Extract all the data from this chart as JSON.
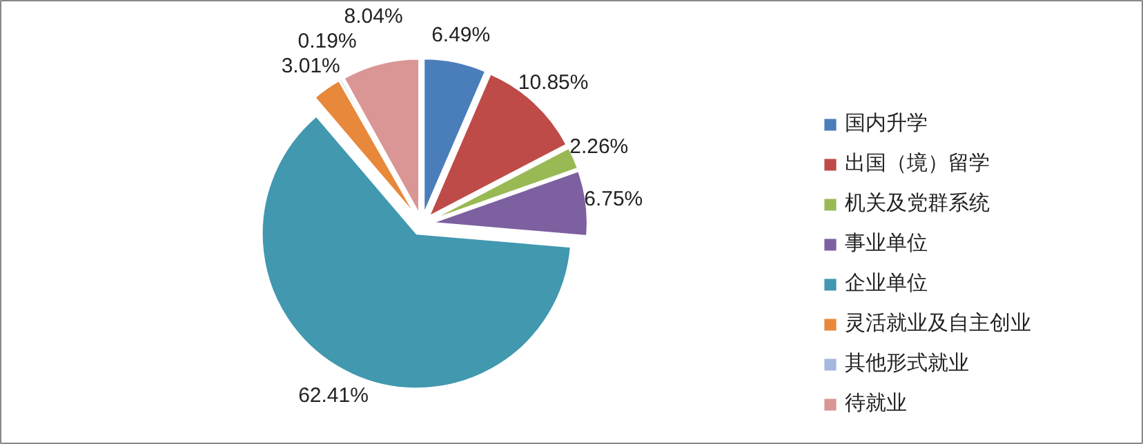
{
  "chart_data": {
    "type": "pie",
    "categories": [
      "国内升学",
      "出国（境）留学",
      "机关及党群系统",
      "事业单位",
      "企业单位",
      "灵活就业及自主创业",
      "其他形式就业",
      "待就业"
    ],
    "values": [
      6.49,
      10.85,
      2.26,
      6.75,
      62.41,
      3.01,
      0.19,
      8.04
    ],
    "value_labels": [
      "6.49%",
      "10.85%",
      "2.26%",
      "6.75%",
      "62.41%",
      "3.01%",
      "0.19%",
      "8.04%"
    ],
    "colors": [
      "#4a7ebb",
      "#be4b48",
      "#98b954",
      "#7d60a0",
      "#4198af",
      "#e8883a",
      "#a5b7de",
      "#d99694"
    ],
    "legend": "right"
  }
}
